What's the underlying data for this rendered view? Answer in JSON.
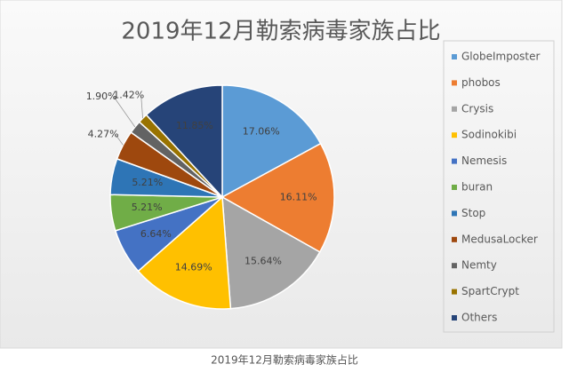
{
  "chart_data": {
    "type": "pie",
    "title": "2019年12月勒索病毒家族占比",
    "caption": "2019年12月勒索病毒家族占比",
    "categories": [
      "GlobeImposter",
      "phobos",
      "Crysis",
      "Sodinokibi",
      "Nemesis",
      "buran",
      "Stop",
      "MedusaLocker",
      "Nemty",
      "SpartCrypt",
      "Others"
    ],
    "values": [
      17.06,
      16.11,
      15.64,
      14.69,
      6.64,
      5.21,
      5.21,
      4.27,
      1.9,
      1.42,
      11.85
    ],
    "value_labels": [
      "17.06%",
      "16.11%",
      "15.64%",
      "14.69%",
      "6.64%",
      "5.21%",
      "5.21%",
      "4.27%",
      "1.90%",
      "1.42%",
      "11.85%"
    ],
    "colors": [
      "#5b9bd5",
      "#ed7d31",
      "#a5a5a5",
      "#ffc000",
      "#4472c4",
      "#70ad47",
      "#2e75b6",
      "#9e480e",
      "#636363",
      "#997300",
      "#264478"
    ],
    "legend": "right"
  }
}
